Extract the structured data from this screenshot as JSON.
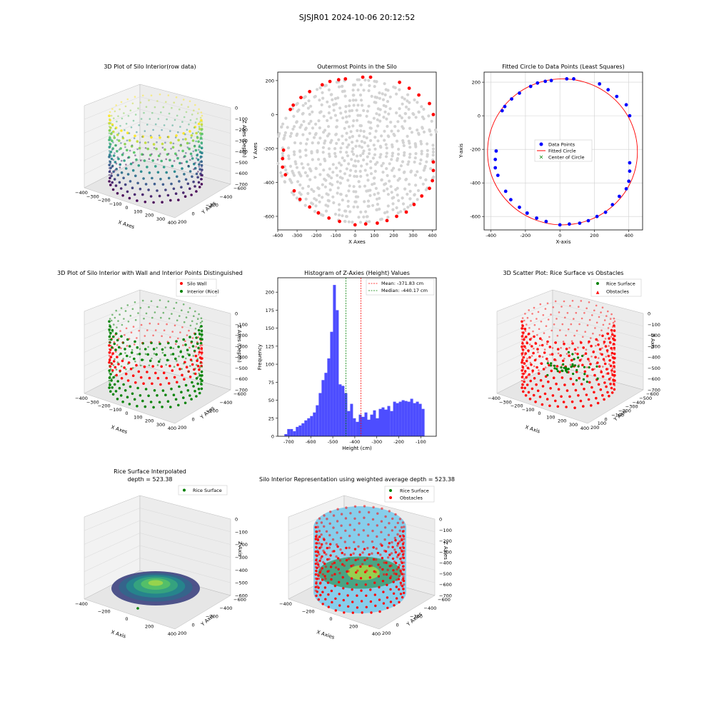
{
  "figure": {
    "title": "SJSJR01 2024-10-06 20:12:52"
  },
  "colors": {
    "silo_wall": "#ff0000",
    "interior_rice": "#008000",
    "outer_points": "#d3d3d3",
    "data_points": "#0000ff",
    "fitted_circle": "#ff0000",
    "center": "#008000",
    "hist_bar": "#4d4dff",
    "mean_line": "#ff0000",
    "median_line": "#008000",
    "cylinder": "#87ceeb"
  },
  "chart_data": [
    {
      "id": "raw3d",
      "type": "scatter",
      "title": "3D Plot of Silo Interior(row data)",
      "xlabel": "X Axes",
      "ylabel": "Y Axes",
      "zlabel": "Z Axes (Depth)",
      "xticks": [
        "−400",
        "−300",
        "−200",
        "−100",
        "0",
        "100",
        "200",
        "300",
        "400"
      ],
      "yticks": [
        "200",
        "0",
        "−200",
        "−400",
        "−600"
      ],
      "zticks": [
        "0",
        "−100",
        "−200",
        "−300",
        "−400",
        "−500",
        "−600",
        "−700"
      ],
      "colormap": "viridis"
    },
    {
      "id": "outer",
      "type": "scatter",
      "title": "Outermost Points in the Silo",
      "xlabel": "X Axes",
      "ylabel": "Y Axes",
      "xlim": [
        -400,
        420
      ],
      "ylim": [
        -680,
        250
      ],
      "xticks": [
        -400,
        -300,
        -200,
        -100,
        0,
        100,
        200,
        300,
        400
      ],
      "yticks": [
        200,
        0,
        -200,
        -400,
        -600
      ],
      "outer_points": [
        [
          -320,
          55
        ],
        [
          -335,
          30
        ],
        [
          -280,
          100
        ],
        [
          -235,
          135
        ],
        [
          -170,
          175
        ],
        [
          -130,
          195
        ],
        [
          -85,
          205
        ],
        [
          -50,
          210
        ],
        [
          40,
          220
        ],
        [
          80,
          220
        ],
        [
          230,
          190
        ],
        [
          280,
          155
        ],
        [
          330,
          115
        ],
        [
          385,
          65
        ],
        [
          405,
          0
        ],
        [
          -370,
          -210
        ],
        [
          -375,
          -260
        ],
        [
          -375,
          -310
        ],
        [
          -360,
          -355
        ],
        [
          -315,
          -450
        ],
        [
          -285,
          -500
        ],
        [
          -235,
          -545
        ],
        [
          -190,
          -580
        ],
        [
          -135,
          -610
        ],
        [
          -80,
          -630
        ],
        [
          0,
          -650
        ],
        [
          55,
          -645
        ],
        [
          115,
          -640
        ],
        [
          165,
          -625
        ],
        [
          215,
          -600
        ],
        [
          265,
          -575
        ],
        [
          305,
          -530
        ],
        [
          345,
          -480
        ],
        [
          385,
          -435
        ],
        [
          400,
          -390
        ],
        [
          405,
          -330
        ],
        [
          405,
          -280
        ],
        [
          -190,
          -580
        ]
      ]
    },
    {
      "id": "circle",
      "type": "scatter",
      "title": "Fitted Circle to Data Points (Least Squares)",
      "xlabel": "X-axis",
      "ylabel": "Y-axis",
      "xlim": [
        -440,
        480
      ],
      "ylim": [
        -680,
        260
      ],
      "xticks": [
        -400,
        -200,
        0,
        200,
        400
      ],
      "yticks": [
        200,
        0,
        -200,
        -400,
        -600
      ],
      "circle": {
        "cx": 15,
        "cy": -215,
        "r": 435
      },
      "legend": [
        "Data Points",
        "Fitted Circle",
        "Center of Circle"
      ],
      "legend_loc": "center",
      "grid": true
    },
    {
      "id": "wall3d",
      "type": "scatter",
      "title": "3D Plot of Silo Interior with Wall and Interior Points Distinguished",
      "xlabel": "X Axes",
      "ylabel": "Y Axes",
      "zlabel": "Z Axes (Depth)",
      "xticks": [
        "−400",
        "−300",
        "−200",
        "−100",
        "0",
        "100",
        "200",
        "300",
        "400"
      ],
      "yticks": [
        "200",
        "0",
        "−200",
        "−400",
        "−600"
      ],
      "zticks": [
        "0",
        "−100",
        "−200",
        "−300",
        "−400",
        "−500",
        "−600",
        "−700"
      ],
      "legend": [
        "Silo Wall",
        "Interior (Rice)"
      ]
    },
    {
      "id": "hist",
      "type": "bar",
      "title": "Histogram of Z-Axies (Height) Values",
      "xlabel": "Height (cm)",
      "ylabel": "Frequency",
      "xlim": [
        -750,
        -30
      ],
      "ylim": [
        0,
        220
      ],
      "xticks": [
        -700,
        -600,
        -500,
        -400,
        -300,
        -200,
        -100
      ],
      "yticks": [
        0,
        25,
        50,
        75,
        100,
        125,
        150,
        175,
        200
      ],
      "bin_start": -720,
      "bin_width": 13,
      "counts": [
        3,
        10,
        10,
        7,
        13,
        15,
        18,
        22,
        25,
        28,
        33,
        43,
        60,
        78,
        88,
        108,
        145,
        210,
        175,
        72,
        70,
        60,
        35,
        45,
        25,
        20,
        30,
        27,
        33,
        23,
        30,
        36,
        25,
        38,
        40,
        37,
        42,
        35,
        48,
        46,
        48,
        50,
        49,
        48,
        52,
        46,
        48,
        45,
        38
      ],
      "mean": -371.83,
      "median": -440.17,
      "legend": [
        "Mean: -371.83 cm",
        "Median: -440.17 cm"
      ]
    },
    {
      "id": "surf3d",
      "type": "scatter",
      "title": "3D Scatter Plot: Rice Surface vs Obstacles",
      "xlabel": "X Axis",
      "ylabel": "Y Axis",
      "zlabel": "Z Axis",
      "xticks": [
        "−400",
        "−300",
        "−200",
        "−100",
        "0",
        "100",
        "200",
        "300",
        "400"
      ],
      "yticks": [
        "200",
        "100",
        "0",
        "−100",
        "−200",
        "−300",
        "−400",
        "−500",
        "−600"
      ],
      "zticks": [
        "0",
        "−100",
        "−200",
        "−300",
        "−400",
        "−500",
        "−600",
        "−700"
      ],
      "legend": [
        "Rice Surface",
        "Obstacles"
      ]
    },
    {
      "id": "interp3d",
      "type": "scatter",
      "title": "Rice Surface Interpolated",
      "subtitle": "depth = 523.38",
      "xlabel": "X Axis",
      "ylabel": "Y Axis",
      "zlabel": "Z Axis",
      "xticks": [
        "−400",
        "−200",
        "0",
        "200",
        "400"
      ],
      "yticks": [
        "200",
        "0",
        "−200",
        "−400",
        "−600"
      ],
      "zticks": [
        "0",
        "−100",
        "−200",
        "−300",
        "−400",
        "−500",
        "−600"
      ],
      "legend": [
        "Rice Surface"
      ]
    },
    {
      "id": "rep3d",
      "type": "scatter",
      "title": "Silo Interior Representation using weighted average depth = 523.38",
      "xlabel": "X Axies",
      "ylabel": "Y Axies",
      "zlabel": "Z Axies",
      "xticks": [
        "−400",
        "−200",
        "0",
        "200",
        "400"
      ],
      "yticks": [
        "200",
        "0",
        "−200",
        "−400",
        "−600"
      ],
      "zticks": [
        "0",
        "−100",
        "−200",
        "−300",
        "−400",
        "−500",
        "−600",
        "−700"
      ],
      "legend": [
        "Rice Surface",
        "Obstacles"
      ]
    }
  ]
}
